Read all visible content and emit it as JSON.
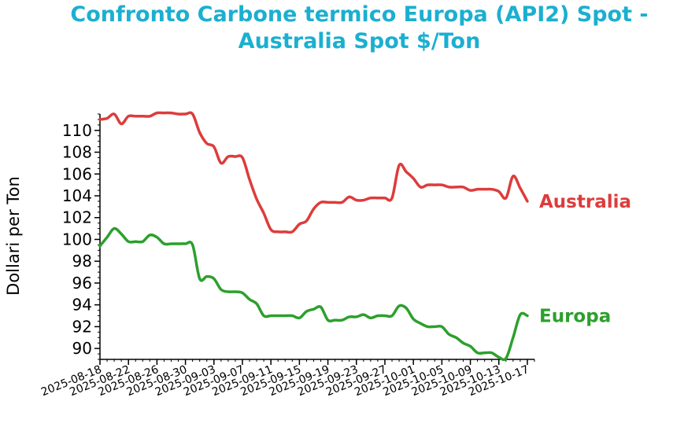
{
  "chart_data": {
    "type": "line",
    "title_line1": "Confronto Carbone termico Europa (API2) Spot -",
    "title_line2": "Australia Spot $/Ton",
    "title_color": "#1bafd0",
    "ylabel": "Dollari per Ton",
    "xlabel": "",
    "ylim": [
      89.0,
      111.5
    ],
    "xlim": [
      "2025-08-18",
      "2025-10-18"
    ],
    "yticks": [
      90,
      92,
      94,
      96,
      98,
      100,
      102,
      104,
      106,
      108,
      110
    ],
    "xticks": [
      "2025-08-18",
      "2025-08-22",
      "2025-08-26",
      "2025-08-30",
      "2025-09-03",
      "2025-09-07",
      "2025-09-11",
      "2025-09-15",
      "2025-09-19",
      "2025-09-23",
      "2025-09-27",
      "2025-10-01",
      "2025-10-05",
      "2025-10-09",
      "2025-10-13",
      "2025-10-17"
    ],
    "grid": false,
    "legend": "inline labels at right end of each line",
    "series": [
      {
        "name": "Australia",
        "color": "#dd3c3c",
        "points": [
          [
            "2025-08-18",
            111.0
          ],
          [
            "2025-08-19",
            111.1
          ],
          [
            "2025-08-20",
            111.5
          ],
          [
            "2025-08-21",
            110.6
          ],
          [
            "2025-08-22",
            111.3
          ],
          [
            "2025-08-23",
            111.3
          ],
          [
            "2025-08-24",
            111.3
          ],
          [
            "2025-08-25",
            111.3
          ],
          [
            "2025-08-26",
            111.6
          ],
          [
            "2025-08-27",
            111.6
          ],
          [
            "2025-08-28",
            111.6
          ],
          [
            "2025-08-29",
            111.5
          ],
          [
            "2025-08-30",
            111.5
          ],
          [
            "2025-08-31",
            111.5
          ],
          [
            "2025-09-01",
            109.8
          ],
          [
            "2025-09-02",
            108.8
          ],
          [
            "2025-09-03",
            108.5
          ],
          [
            "2025-09-04",
            107.0
          ],
          [
            "2025-09-05",
            107.6
          ],
          [
            "2025-09-06",
            107.6
          ],
          [
            "2025-09-07",
            107.5
          ],
          [
            "2025-09-08",
            105.5
          ],
          [
            "2025-09-09",
            103.7
          ],
          [
            "2025-09-10",
            102.4
          ],
          [
            "2025-09-11",
            100.9
          ],
          [
            "2025-09-12",
            100.7
          ],
          [
            "2025-09-13",
            100.7
          ],
          [
            "2025-09-14",
            100.7
          ],
          [
            "2025-09-15",
            101.4
          ],
          [
            "2025-09-16",
            101.7
          ],
          [
            "2025-09-17",
            102.8
          ],
          [
            "2025-09-18",
            103.4
          ],
          [
            "2025-09-19",
            103.4
          ],
          [
            "2025-09-20",
            103.4
          ],
          [
            "2025-09-21",
            103.4
          ],
          [
            "2025-09-22",
            103.9
          ],
          [
            "2025-09-23",
            103.6
          ],
          [
            "2025-09-24",
            103.6
          ],
          [
            "2025-09-25",
            103.8
          ],
          [
            "2025-09-26",
            103.8
          ],
          [
            "2025-09-27",
            103.8
          ],
          [
            "2025-09-28",
            103.8
          ],
          [
            "2025-09-29",
            106.8
          ],
          [
            "2025-09-30",
            106.2
          ],
          [
            "2025-10-01",
            105.6
          ],
          [
            "2025-10-02",
            104.8
          ],
          [
            "2025-10-03",
            105.0
          ],
          [
            "2025-10-04",
            105.0
          ],
          [
            "2025-10-05",
            105.0
          ],
          [
            "2025-10-06",
            104.8
          ],
          [
            "2025-10-07",
            104.8
          ],
          [
            "2025-10-08",
            104.8
          ],
          [
            "2025-10-09",
            104.5
          ],
          [
            "2025-10-10",
            104.6
          ],
          [
            "2025-10-11",
            104.6
          ],
          [
            "2025-10-12",
            104.6
          ],
          [
            "2025-10-13",
            104.4
          ],
          [
            "2025-10-14",
            103.8
          ],
          [
            "2025-10-15",
            105.8
          ],
          [
            "2025-10-16",
            104.7
          ],
          [
            "2025-10-17",
            103.5
          ]
        ]
      },
      {
        "name": "Europa",
        "color": "#2ca02c",
        "points": [
          [
            "2025-08-18",
            99.4
          ],
          [
            "2025-08-19",
            100.2
          ],
          [
            "2025-08-20",
            101.0
          ],
          [
            "2025-08-21",
            100.5
          ],
          [
            "2025-08-22",
            99.8
          ],
          [
            "2025-08-23",
            99.8
          ],
          [
            "2025-08-24",
            99.8
          ],
          [
            "2025-08-25",
            100.4
          ],
          [
            "2025-08-26",
            100.2
          ],
          [
            "2025-08-27",
            99.6
          ],
          [
            "2025-08-28",
            99.6
          ],
          [
            "2025-08-29",
            99.6
          ],
          [
            "2025-08-30",
            99.6
          ],
          [
            "2025-08-31",
            99.5
          ],
          [
            "2025-09-01",
            96.4
          ],
          [
            "2025-09-02",
            96.6
          ],
          [
            "2025-09-03",
            96.4
          ],
          [
            "2025-09-04",
            95.4
          ],
          [
            "2025-09-05",
            95.2
          ],
          [
            "2025-09-06",
            95.2
          ],
          [
            "2025-09-07",
            95.1
          ],
          [
            "2025-09-08",
            94.5
          ],
          [
            "2025-09-09",
            94.1
          ],
          [
            "2025-09-10",
            93.0
          ],
          [
            "2025-09-11",
            93.0
          ],
          [
            "2025-09-12",
            93.0
          ],
          [
            "2025-09-13",
            93.0
          ],
          [
            "2025-09-14",
            93.0
          ],
          [
            "2025-09-15",
            92.8
          ],
          [
            "2025-09-16",
            93.4
          ],
          [
            "2025-09-17",
            93.6
          ],
          [
            "2025-09-18",
            93.8
          ],
          [
            "2025-09-19",
            92.6
          ],
          [
            "2025-09-20",
            92.6
          ],
          [
            "2025-09-21",
            92.6
          ],
          [
            "2025-09-22",
            92.9
          ],
          [
            "2025-09-23",
            92.9
          ],
          [
            "2025-09-24",
            93.1
          ],
          [
            "2025-09-25",
            92.8
          ],
          [
            "2025-09-26",
            93.0
          ],
          [
            "2025-09-27",
            93.0
          ],
          [
            "2025-09-28",
            93.0
          ],
          [
            "2025-09-29",
            93.9
          ],
          [
            "2025-09-30",
            93.7
          ],
          [
            "2025-10-01",
            92.7
          ],
          [
            "2025-10-02",
            92.3
          ],
          [
            "2025-10-03",
            92.0
          ],
          [
            "2025-10-04",
            92.0
          ],
          [
            "2025-10-05",
            92.0
          ],
          [
            "2025-10-06",
            91.3
          ],
          [
            "2025-10-07",
            91.0
          ],
          [
            "2025-10-08",
            90.5
          ],
          [
            "2025-10-09",
            90.2
          ],
          [
            "2025-10-10",
            89.6
          ],
          [
            "2025-10-11",
            89.6
          ],
          [
            "2025-10-12",
            89.6
          ],
          [
            "2025-10-13",
            89.2
          ],
          [
            "2025-10-14",
            89.1
          ],
          [
            "2025-10-15",
            91.0
          ],
          [
            "2025-10-16",
            93.1
          ],
          [
            "2025-10-17",
            93.0
          ]
        ]
      }
    ]
  }
}
